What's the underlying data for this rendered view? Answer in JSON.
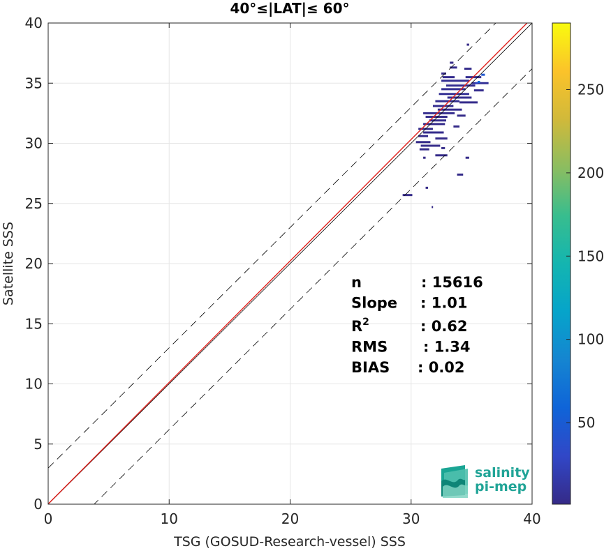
{
  "chart_data": {
    "type": "heatmap",
    "title": "40°≤|LAT|≤ 60°",
    "xlabel": "TSG (GOSUD-Research-vessel) SSS",
    "ylabel": "Satellite SSS",
    "xlim": [
      0,
      40
    ],
    "ylim": [
      0,
      40
    ],
    "xticks": [
      0,
      10,
      20,
      30,
      40
    ],
    "yticks": [
      0,
      5,
      10,
      15,
      20,
      25,
      30,
      35,
      40
    ],
    "grid": true,
    "colorbar": {
      "ticks": [
        50,
        100,
        150,
        200,
        250
      ],
      "range": [
        1,
        290
      ],
      "colormap": "parula"
    },
    "lines": {
      "identity": {
        "slope": 1,
        "intercept": 0,
        "color": "#000000"
      },
      "regression": {
        "slope": 1.01,
        "intercept": 0.02,
        "color": "#e0201b"
      },
      "upper_bound": {
        "slope": 1,
        "intercept": 3.0,
        "color": "#000000",
        "dash": true
      },
      "lower_bound": {
        "slope": 1,
        "intercept": -3.8,
        "color": "#000000",
        "dash": true
      }
    },
    "stats": [
      {
        "label": "n",
        "value": ": 15616"
      },
      {
        "label": "Slope",
        "value": ": 1.01"
      },
      {
        "label": "R",
        "sup": "2",
        "value": ": 0.62"
      },
      {
        "label": "RMS",
        "value": ": 1.34"
      },
      {
        "label": "BIAS",
        "value": ": 0.02"
      }
    ],
    "cells": [
      [
        33.2,
        33.8,
        36.3,
        3
      ],
      [
        34.4,
        35.0,
        36.2,
        3
      ],
      [
        32.5,
        32.9,
        35.8,
        2
      ],
      [
        32.6,
        33.6,
        35.5,
        4
      ],
      [
        34.5,
        35.8,
        35.5,
        5
      ],
      [
        32.5,
        34.8,
        35.2,
        6
      ],
      [
        35.0,
        36.4,
        35.0,
        8
      ],
      [
        32.9,
        35.3,
        34.8,
        5
      ],
      [
        32.5,
        34.5,
        34.5,
        6
      ],
      [
        35.2,
        36.0,
        34.4,
        4
      ],
      [
        32.3,
        34.8,
        34.1,
        7
      ],
      [
        33.0,
        35.0,
        33.8,
        5
      ],
      [
        32.0,
        34.0,
        33.5,
        5
      ],
      [
        34.0,
        35.5,
        33.4,
        3
      ],
      [
        31.8,
        33.5,
        33.1,
        5
      ],
      [
        32.2,
        34.2,
        32.8,
        4
      ],
      [
        31.0,
        33.6,
        32.5,
        4
      ],
      [
        33.8,
        34.5,
        32.3,
        2
      ],
      [
        31.2,
        33.0,
        32.2,
        3
      ],
      [
        31.5,
        32.9,
        31.9,
        4
      ],
      [
        31.0,
        32.8,
        31.6,
        3
      ],
      [
        33.5,
        34.0,
        31.4,
        2
      ],
      [
        30.6,
        31.8,
        31.2,
        3
      ],
      [
        31.0,
        32.7,
        30.9,
        3
      ],
      [
        30.6,
        31.4,
        30.6,
        3
      ],
      [
        32.0,
        33.0,
        30.4,
        2
      ],
      [
        30.4,
        31.6,
        30.1,
        2
      ],
      [
        30.8,
        32.4,
        29.8,
        2
      ],
      [
        32.5,
        32.8,
        29.6,
        2
      ],
      [
        30.7,
        31.5,
        29.5,
        2
      ],
      [
        32.0,
        33.0,
        29.0,
        2
      ],
      [
        31.0,
        31.2,
        28.8,
        1
      ],
      [
        34.5,
        34.8,
        28.8,
        2
      ],
      [
        35.5,
        35.7,
        35.1,
        60
      ],
      [
        35.8,
        36.1,
        35.7,
        45
      ],
      [
        35.3,
        35.5,
        35.0,
        30
      ],
      [
        29.3,
        30.1,
        25.7,
        2
      ],
      [
        33.8,
        34.3,
        27.4,
        2
      ],
      [
        31.2,
        31.4,
        26.3,
        1
      ],
      [
        31.7,
        31.8,
        24.7,
        1
      ],
      [
        33.2,
        33.5,
        36.7,
        1
      ],
      [
        34.6,
        34.8,
        38.2,
        1
      ]
    ]
  },
  "logo": {
    "line1": "salinity",
    "line2": "pi-mep"
  }
}
